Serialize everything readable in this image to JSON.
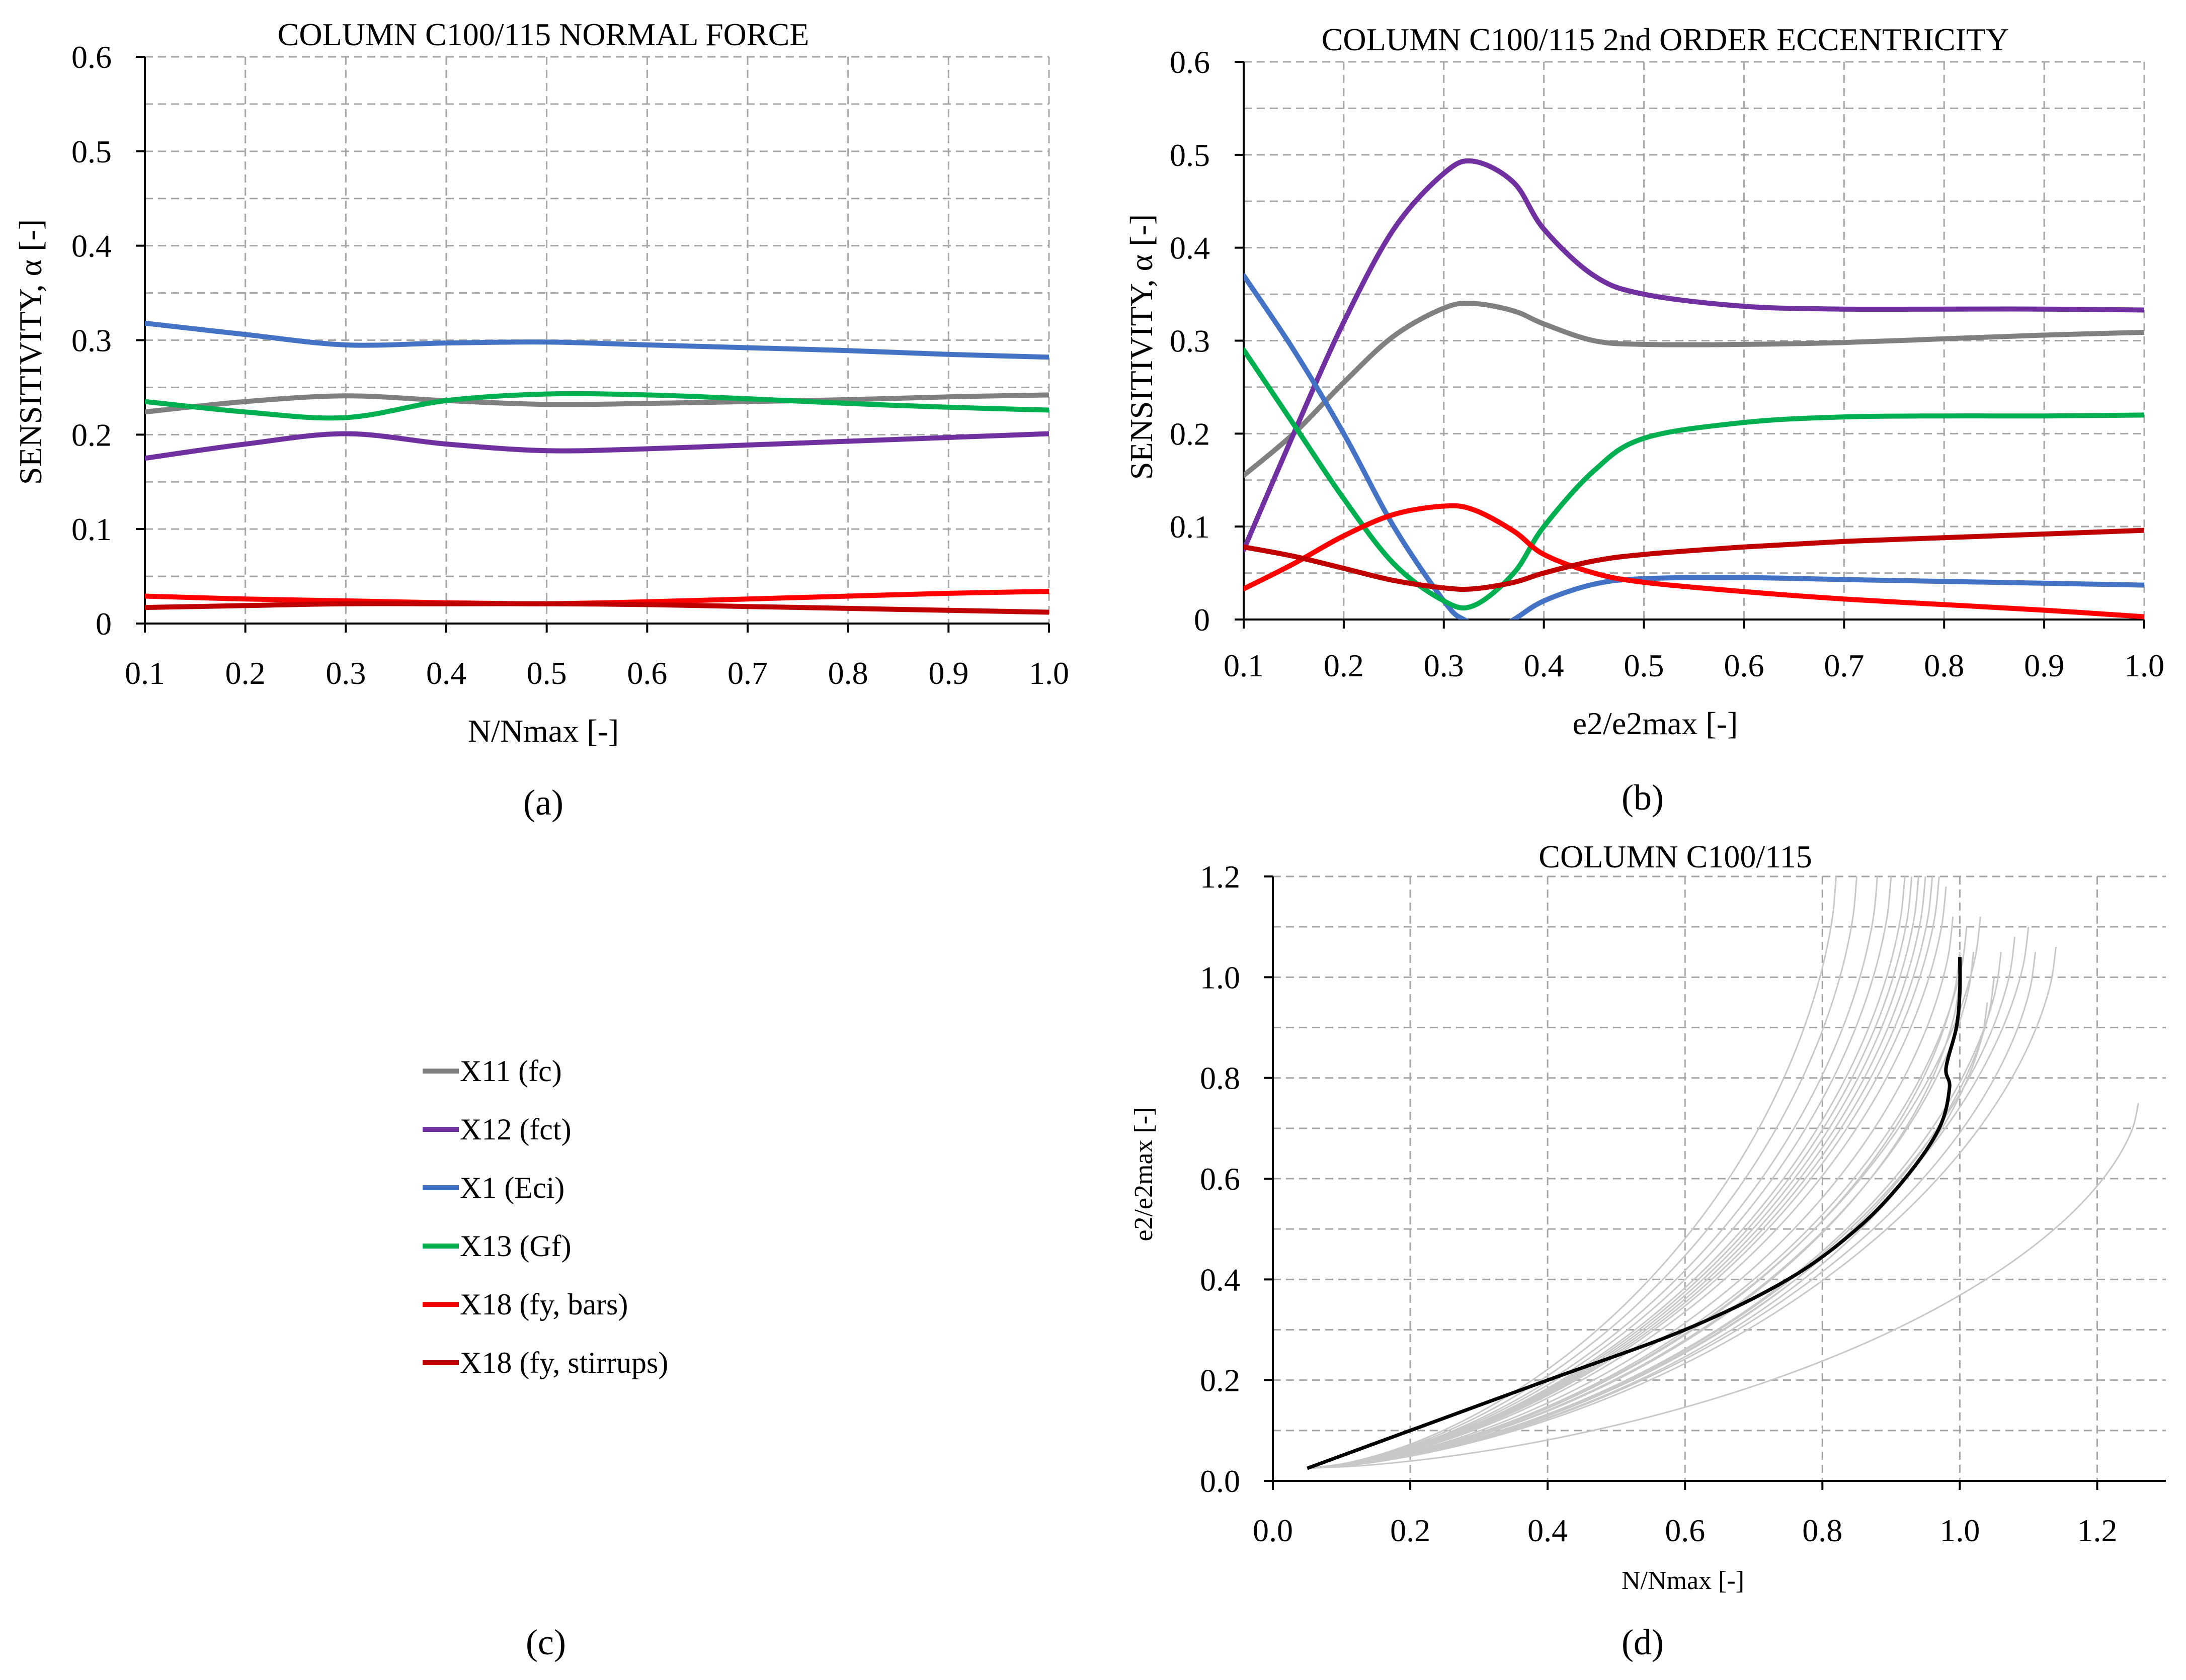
{
  "panel_labels": [
    "(a)",
    "(b)",
    "(c)",
    "(d)"
  ],
  "legend": [
    {
      "label": "X11 (fc)",
      "color": "#808080"
    },
    {
      "label": "X12 (fct)",
      "color": "#7030A0"
    },
    {
      "label": "X1 (Eci)",
      "color": "#4472C4"
    },
    {
      "label": "X13 (Gf)",
      "color": "#00B050"
    },
    {
      "label": "X18 (fy, bars)",
      "color": "#FF0000"
    },
    {
      "label": "X18 (fy, stirrups)",
      "color": "#C00000"
    }
  ],
  "chart_data": [
    {
      "type": "line",
      "title": "COLUMN C100/115 NORMAL FORCE",
      "xlabel": "N/Nmax [-]",
      "ylabel": "SENSITIVITY, α [-]",
      "xlim": [
        0.1,
        1.0
      ],
      "ylim": [
        0,
        0.6
      ],
      "xticks": [
        "0.1",
        "0.2",
        "0.3",
        "0.4",
        "0.5",
        "0.6",
        "0.7",
        "0.8",
        "0.9",
        "1.0"
      ],
      "yticks": [
        "0",
        "0.1",
        "0.2",
        "0.3",
        "0.4",
        "0.5",
        "0.6"
      ],
      "grid": true,
      "series": [
        {
          "name": "X11 (fc)",
          "color": "#808080",
          "x": [
            0.1,
            0.2,
            0.3,
            0.4,
            0.5,
            0.6,
            0.7,
            0.8,
            0.9,
            1.0
          ],
          "y": [
            0.224,
            0.235,
            0.241,
            0.236,
            0.232,
            0.233,
            0.235,
            0.237,
            0.24,
            0.242
          ]
        },
        {
          "name": "X12 (fct)",
          "color": "#7030A0",
          "x": [
            0.1,
            0.2,
            0.3,
            0.4,
            0.5,
            0.6,
            0.7,
            0.8,
            0.9,
            1.0
          ],
          "y": [
            0.175,
            0.19,
            0.201,
            0.19,
            0.183,
            0.185,
            0.189,
            0.193,
            0.197,
            0.201
          ]
        },
        {
          "name": "X1 (Eci)",
          "color": "#4472C4",
          "x": [
            0.1,
            0.2,
            0.3,
            0.4,
            0.5,
            0.6,
            0.7,
            0.8,
            0.9,
            1.0
          ],
          "y": [
            0.318,
            0.306,
            0.295,
            0.297,
            0.298,
            0.295,
            0.292,
            0.289,
            0.285,
            0.282
          ]
        },
        {
          "name": "X13 (Gf)",
          "color": "#00B050",
          "x": [
            0.1,
            0.2,
            0.3,
            0.4,
            0.5,
            0.6,
            0.7,
            0.8,
            0.9,
            1.0
          ],
          "y": [
            0.235,
            0.224,
            0.218,
            0.236,
            0.243,
            0.242,
            0.238,
            0.233,
            0.229,
            0.226
          ]
        },
        {
          "name": "X18 (fy, bars)",
          "color": "#FF0000",
          "x": [
            0.1,
            0.2,
            0.3,
            0.4,
            0.5,
            0.6,
            0.7,
            0.8,
            0.9,
            1.0
          ],
          "y": [
            0.029,
            0.026,
            0.024,
            0.022,
            0.021,
            0.023,
            0.026,
            0.029,
            0.032,
            0.034
          ]
        },
        {
          "name": "X18 (fy, stirrups)",
          "color": "#C00000",
          "x": [
            0.1,
            0.2,
            0.3,
            0.4,
            0.5,
            0.6,
            0.7,
            0.8,
            0.9,
            1.0
          ],
          "y": [
            0.017,
            0.019,
            0.021,
            0.021,
            0.021,
            0.02,
            0.018,
            0.016,
            0.014,
            0.012
          ]
        }
      ]
    },
    {
      "type": "line",
      "title": "COLUMN C100/115 2nd ORDER ECCENTRICITY",
      "xlabel": "e2/e2max [-]",
      "ylabel": "SENSITIVITY, α [-]",
      "xlim": [
        0.1,
        1.0
      ],
      "ylim": [
        0,
        0.6
      ],
      "xticks": [
        "0.1",
        "0.2",
        "0.3",
        "0.4",
        "0.5",
        "0.6",
        "0.7",
        "0.8",
        "0.9",
        "1.0"
      ],
      "yticks": [
        "0",
        "0.1",
        "0.2",
        "0.3",
        "0.4",
        "0.5",
        "0.6"
      ],
      "grid": true,
      "series": [
        {
          "name": "X11 (fc)",
          "color": "#808080",
          "x": [
            0.1,
            0.15,
            0.2,
            0.25,
            0.3,
            0.33,
            0.37,
            0.4,
            0.45,
            0.5,
            0.6,
            0.7,
            0.8,
            0.9,
            1.0
          ],
          "y": [
            0.155,
            0.2,
            0.255,
            0.305,
            0.335,
            0.34,
            0.332,
            0.318,
            0.3,
            0.296,
            0.296,
            0.298,
            0.302,
            0.306,
            0.309
          ]
        },
        {
          "name": "X12 (fct)",
          "color": "#7030A0",
          "x": [
            0.1,
            0.15,
            0.2,
            0.25,
            0.3,
            0.33,
            0.37,
            0.4,
            0.45,
            0.5,
            0.6,
            0.7,
            0.8,
            0.9,
            1.0
          ],
          "y": [
            0.075,
            0.2,
            0.32,
            0.42,
            0.48,
            0.493,
            0.47,
            0.42,
            0.37,
            0.35,
            0.337,
            0.334,
            0.334,
            0.334,
            0.333
          ]
        },
        {
          "name": "X1 (Eci)",
          "color": "#4472C4",
          "x": [
            0.1,
            0.15,
            0.2,
            0.25,
            0.3,
            0.32,
            0.35,
            0.37,
            0.4,
            0.45,
            0.5,
            0.6,
            0.7,
            0.8,
            0.9,
            1.0
          ],
          "y": [
            0.37,
            0.29,
            0.2,
            0.1,
            0.02,
            0.0,
            -0.01,
            0.0,
            0.02,
            0.038,
            0.044,
            0.045,
            0.043,
            0.041,
            0.039,
            0.037
          ]
        },
        {
          "name": "X13 (Gf)",
          "color": "#00B050",
          "x": [
            0.1,
            0.15,
            0.2,
            0.25,
            0.3,
            0.33,
            0.37,
            0.4,
            0.45,
            0.5,
            0.6,
            0.7,
            0.8,
            0.9,
            1.0
          ],
          "y": [
            0.29,
            0.21,
            0.13,
            0.06,
            0.02,
            0.015,
            0.05,
            0.1,
            0.16,
            0.195,
            0.212,
            0.218,
            0.219,
            0.219,
            0.22
          ]
        },
        {
          "name": "X18 (fy, bars)",
          "color": "#FF0000",
          "x": [
            0.1,
            0.15,
            0.2,
            0.25,
            0.3,
            0.33,
            0.37,
            0.4,
            0.45,
            0.5,
            0.6,
            0.7,
            0.8,
            0.9,
            1.0
          ],
          "y": [
            0.033,
            0.06,
            0.09,
            0.113,
            0.122,
            0.118,
            0.095,
            0.07,
            0.05,
            0.04,
            0.03,
            0.022,
            0.016,
            0.01,
            0.003
          ]
        },
        {
          "name": "X18 (fy, stirrups)",
          "color": "#C00000",
          "x": [
            0.1,
            0.15,
            0.2,
            0.25,
            0.3,
            0.33,
            0.37,
            0.4,
            0.45,
            0.5,
            0.6,
            0.7,
            0.8,
            0.9,
            1.0
          ],
          "y": [
            0.078,
            0.068,
            0.055,
            0.042,
            0.034,
            0.033,
            0.04,
            0.05,
            0.063,
            0.07,
            0.078,
            0.084,
            0.088,
            0.092,
            0.096
          ]
        }
      ]
    },
    {
      "type": "line",
      "title": "COLUMN C100/115",
      "xlabel": "N/Nmax [-]",
      "ylabel": "e2/e2max [-]",
      "xlim": [
        0,
        1.3
      ],
      "ylim": [
        0,
        1.2
      ],
      "xticks": [
        "0.0",
        "0.2",
        "0.4",
        "0.6",
        "0.8",
        "1.0",
        "1.2"
      ],
      "yticks": [
        "0.0",
        "0.2",
        "0.4",
        "0.6",
        "0.8",
        "1.0",
        "1.2"
      ],
      "grid": true,
      "mean_curve": {
        "color": "#000000",
        "x": [
          0.05,
          0.2,
          0.4,
          0.6,
          0.75,
          0.85,
          0.92,
          0.97,
          0.985,
          0.98,
          0.995,
          1.0,
          1.0
        ],
        "y": [
          0.025,
          0.1,
          0.2,
          0.3,
          0.4,
          0.5,
          0.6,
          0.7,
          0.78,
          0.82,
          0.9,
          0.97,
          1.04
        ]
      },
      "realizations": {
        "color": "#C8C8C8",
        "count": 25,
        "end_n": [
          0.82,
          0.85,
          0.88,
          0.9,
          0.92,
          0.93,
          0.94,
          0.95,
          0.96,
          0.97,
          0.98,
          0.99,
          1.0,
          1.0,
          1.01,
          1.02,
          1.03,
          1.04,
          1.05,
          1.06,
          1.08,
          1.1,
          1.11,
          1.14,
          1.26
        ],
        "end_e": [
          1.2,
          1.2,
          1.2,
          1.2,
          1.2,
          1.2,
          1.2,
          1.2,
          1.2,
          1.2,
          1.18,
          1.12,
          1.05,
          1.0,
          1.1,
          1.05,
          1.12,
          0.95,
          1.0,
          1.05,
          1.08,
          1.1,
          1.05,
          1.06,
          0.75
        ]
      }
    }
  ]
}
